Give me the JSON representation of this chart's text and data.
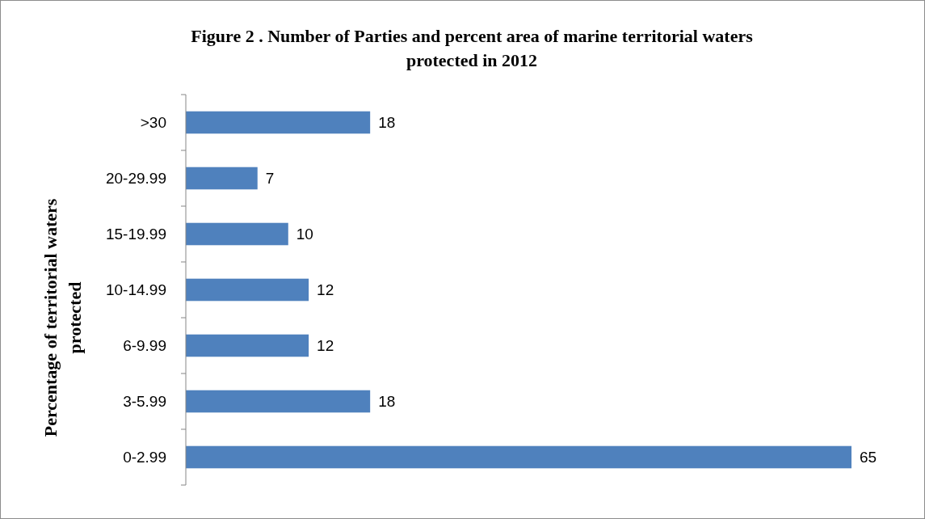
{
  "chart_data": {
    "type": "bar",
    "orientation": "horizontal",
    "title": "Figure 2 . Number of Parties and percent area of marine territorial waters protected in 2012",
    "ylabel": "Percentage of territorial waters protected",
    "categories": [
      ">30",
      "20-29.99",
      "15-19.99",
      "10-14.99",
      "6-9.99",
      "3-5.99",
      "0-2.99"
    ],
    "values": [
      18,
      7,
      10,
      12,
      12,
      18,
      65
    ],
    "color": "#4f81bd",
    "data_labels": true
  }
}
